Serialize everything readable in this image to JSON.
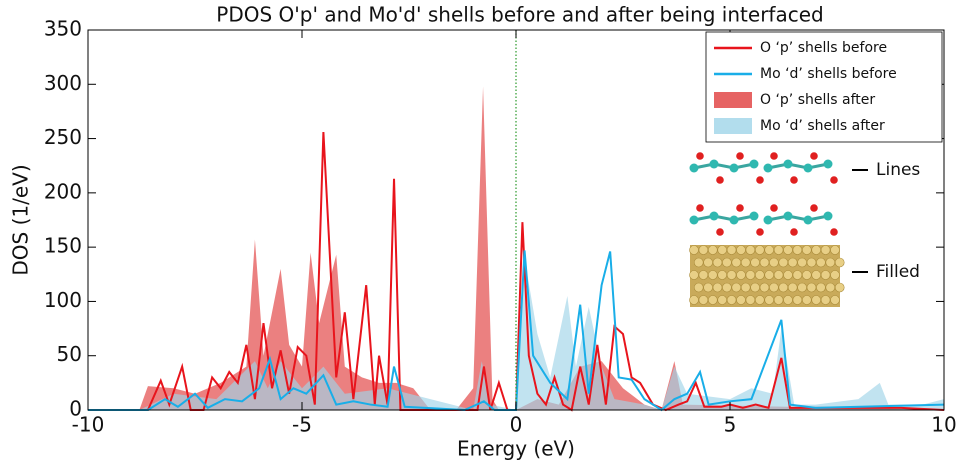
{
  "chart_data": {
    "type": "line",
    "title": "PDOS O'p' and Mo'd' shells before and after being interfaced",
    "x_label": "Energy (eV)",
    "y_label": "DOS (1/eV)",
    "xlim": [
      -10,
      10
    ],
    "ylim": [
      0,
      350
    ],
    "xticks": [
      -10,
      -5,
      0,
      5,
      10
    ],
    "yticks": [
      0,
      50,
      100,
      150,
      200,
      250,
      300,
      350
    ],
    "vline": 0,
    "legend": "upper right",
    "annotations": [
      "Lines",
      "Filled"
    ],
    "series": [
      {
        "name": "O ‘p’ shells after",
        "fill": true,
        "color": "#e03c3c",
        "x": [
          -10,
          -8.8,
          -8.6,
          -8,
          -7.5,
          -6.9,
          -6.3,
          -6.1,
          -5.9,
          -5.5,
          -5.3,
          -5.0,
          -4.8,
          -4.6,
          -4.2,
          -4.0,
          -3.6,
          -3.2,
          -2.8,
          -2.4,
          -2.0,
          -1.4,
          -1.0,
          -0.77,
          -0.55,
          -0.4,
          0,
          0.5,
          1,
          1.5,
          2,
          2.5,
          3,
          3.4,
          3.7,
          3.9,
          10
        ],
        "values": [
          0,
          0,
          22,
          20,
          15,
          25,
          40,
          157,
          50,
          130,
          60,
          40,
          145,
          80,
          143,
          40,
          30,
          25,
          25,
          20,
          0,
          0,
          20,
          298,
          10,
          0,
          0,
          10,
          5,
          40,
          45,
          20,
          5,
          0,
          45,
          5,
          0
        ]
      },
      {
        "name": "Mo ‘d’ shells after",
        "fill": true,
        "color": "#9fd4e8",
        "x": [
          -10,
          -8.8,
          -8,
          -7,
          -6.1,
          -5.8,
          -5.5,
          -5,
          -4.5,
          -4,
          -3,
          -2,
          -1,
          -0.8,
          -0.6,
          0,
          0.2,
          0.5,
          0.8,
          1.2,
          1.4,
          1.7,
          2,
          2.3,
          3,
          3.4,
          3.7,
          4,
          5,
          5.5,
          6,
          6.2,
          6.5,
          7,
          8,
          8.5,
          8.7,
          9.5,
          10
        ],
        "values": [
          0,
          0,
          15,
          10,
          45,
          20,
          45,
          20,
          40,
          15,
          20,
          10,
          0,
          45,
          5,
          0,
          140,
          70,
          30,
          105,
          40,
          95,
          40,
          10,
          5,
          0,
          40,
          15,
          10,
          20,
          15,
          75,
          5,
          5,
          10,
          25,
          5,
          5,
          10
        ]
      },
      {
        "name": "O ‘p’ shells before",
        "fill": false,
        "color": "#e8141c",
        "x": [
          -10,
          -8.6,
          -8.3,
          -8.1,
          -7.8,
          -7.6,
          -7.3,
          -7.1,
          -6.9,
          -6.7,
          -6.5,
          -6.3,
          -6.1,
          -5.9,
          -5.7,
          -5.5,
          -5.3,
          -5.1,
          -4.9,
          -4.7,
          -4.5,
          -4.2,
          -4.0,
          -3.8,
          -3.5,
          -3.3,
          -3.2,
          -3.0,
          -2.85,
          -2.7,
          -2.3,
          -1.2,
          -0.9,
          -0.75,
          -0.6,
          -0.4,
          -0.2,
          0,
          0.15,
          0.3,
          0.5,
          0.7,
          0.9,
          1.1,
          1.3,
          1.5,
          1.7,
          1.9,
          2.1,
          2.3,
          2.5,
          2.7,
          2.9,
          3.2,
          3.5,
          3.8,
          4.0,
          4.2,
          4.4,
          4.8,
          5.0,
          5.3,
          5.6,
          5.9,
          6.2,
          6.4,
          7,
          8.5,
          9,
          10
        ],
        "values": [
          0,
          0,
          27,
          5,
          40,
          0,
          0,
          30,
          20,
          35,
          25,
          60,
          10,
          80,
          20,
          55,
          15,
          58,
          50,
          5,
          256,
          30,
          90,
          10,
          115,
          5,
          50,
          5,
          213,
          0,
          0,
          0,
          0,
          40,
          0,
          25,
          0,
          0,
          173,
          50,
          15,
          5,
          30,
          5,
          0,
          40,
          5,
          60,
          5,
          77,
          70,
          30,
          25,
          5,
          0,
          5,
          8,
          25,
          3,
          3,
          5,
          2,
          5,
          2,
          48,
          2,
          2,
          2,
          2,
          0
        ]
      },
      {
        "name": "Mo ‘d’ shells before",
        "fill": false,
        "color": "#19aee8",
        "x": [
          -10,
          -8.6,
          -8.2,
          -7.9,
          -7.5,
          -7.2,
          -6.8,
          -6.4,
          -6.0,
          -5.75,
          -5.5,
          -5.2,
          -4.9,
          -4.5,
          -4.2,
          -3.8,
          -3.4,
          -3.0,
          -2.85,
          -2.6,
          -1.2,
          -0.75,
          -0.5,
          0,
          0.2,
          0.4,
          0.8,
          1.2,
          1.5,
          1.7,
          2.0,
          2.2,
          2.4,
          2.7,
          3.0,
          3.4,
          3.7,
          4.0,
          4.3,
          4.5,
          5,
          5.5,
          6.2,
          6.4,
          7,
          10
        ],
        "values": [
          0,
          0,
          10,
          3,
          15,
          2,
          10,
          8,
          20,
          47,
          10,
          20,
          15,
          32,
          5,
          8,
          5,
          3,
          40,
          3,
          0,
          8,
          0,
          0,
          147,
          50,
          25,
          10,
          97,
          15,
          115,
          146,
          30,
          28,
          10,
          0,
          10,
          15,
          35,
          5,
          8,
          10,
          83,
          5,
          2,
          5
        ]
      }
    ]
  }
}
